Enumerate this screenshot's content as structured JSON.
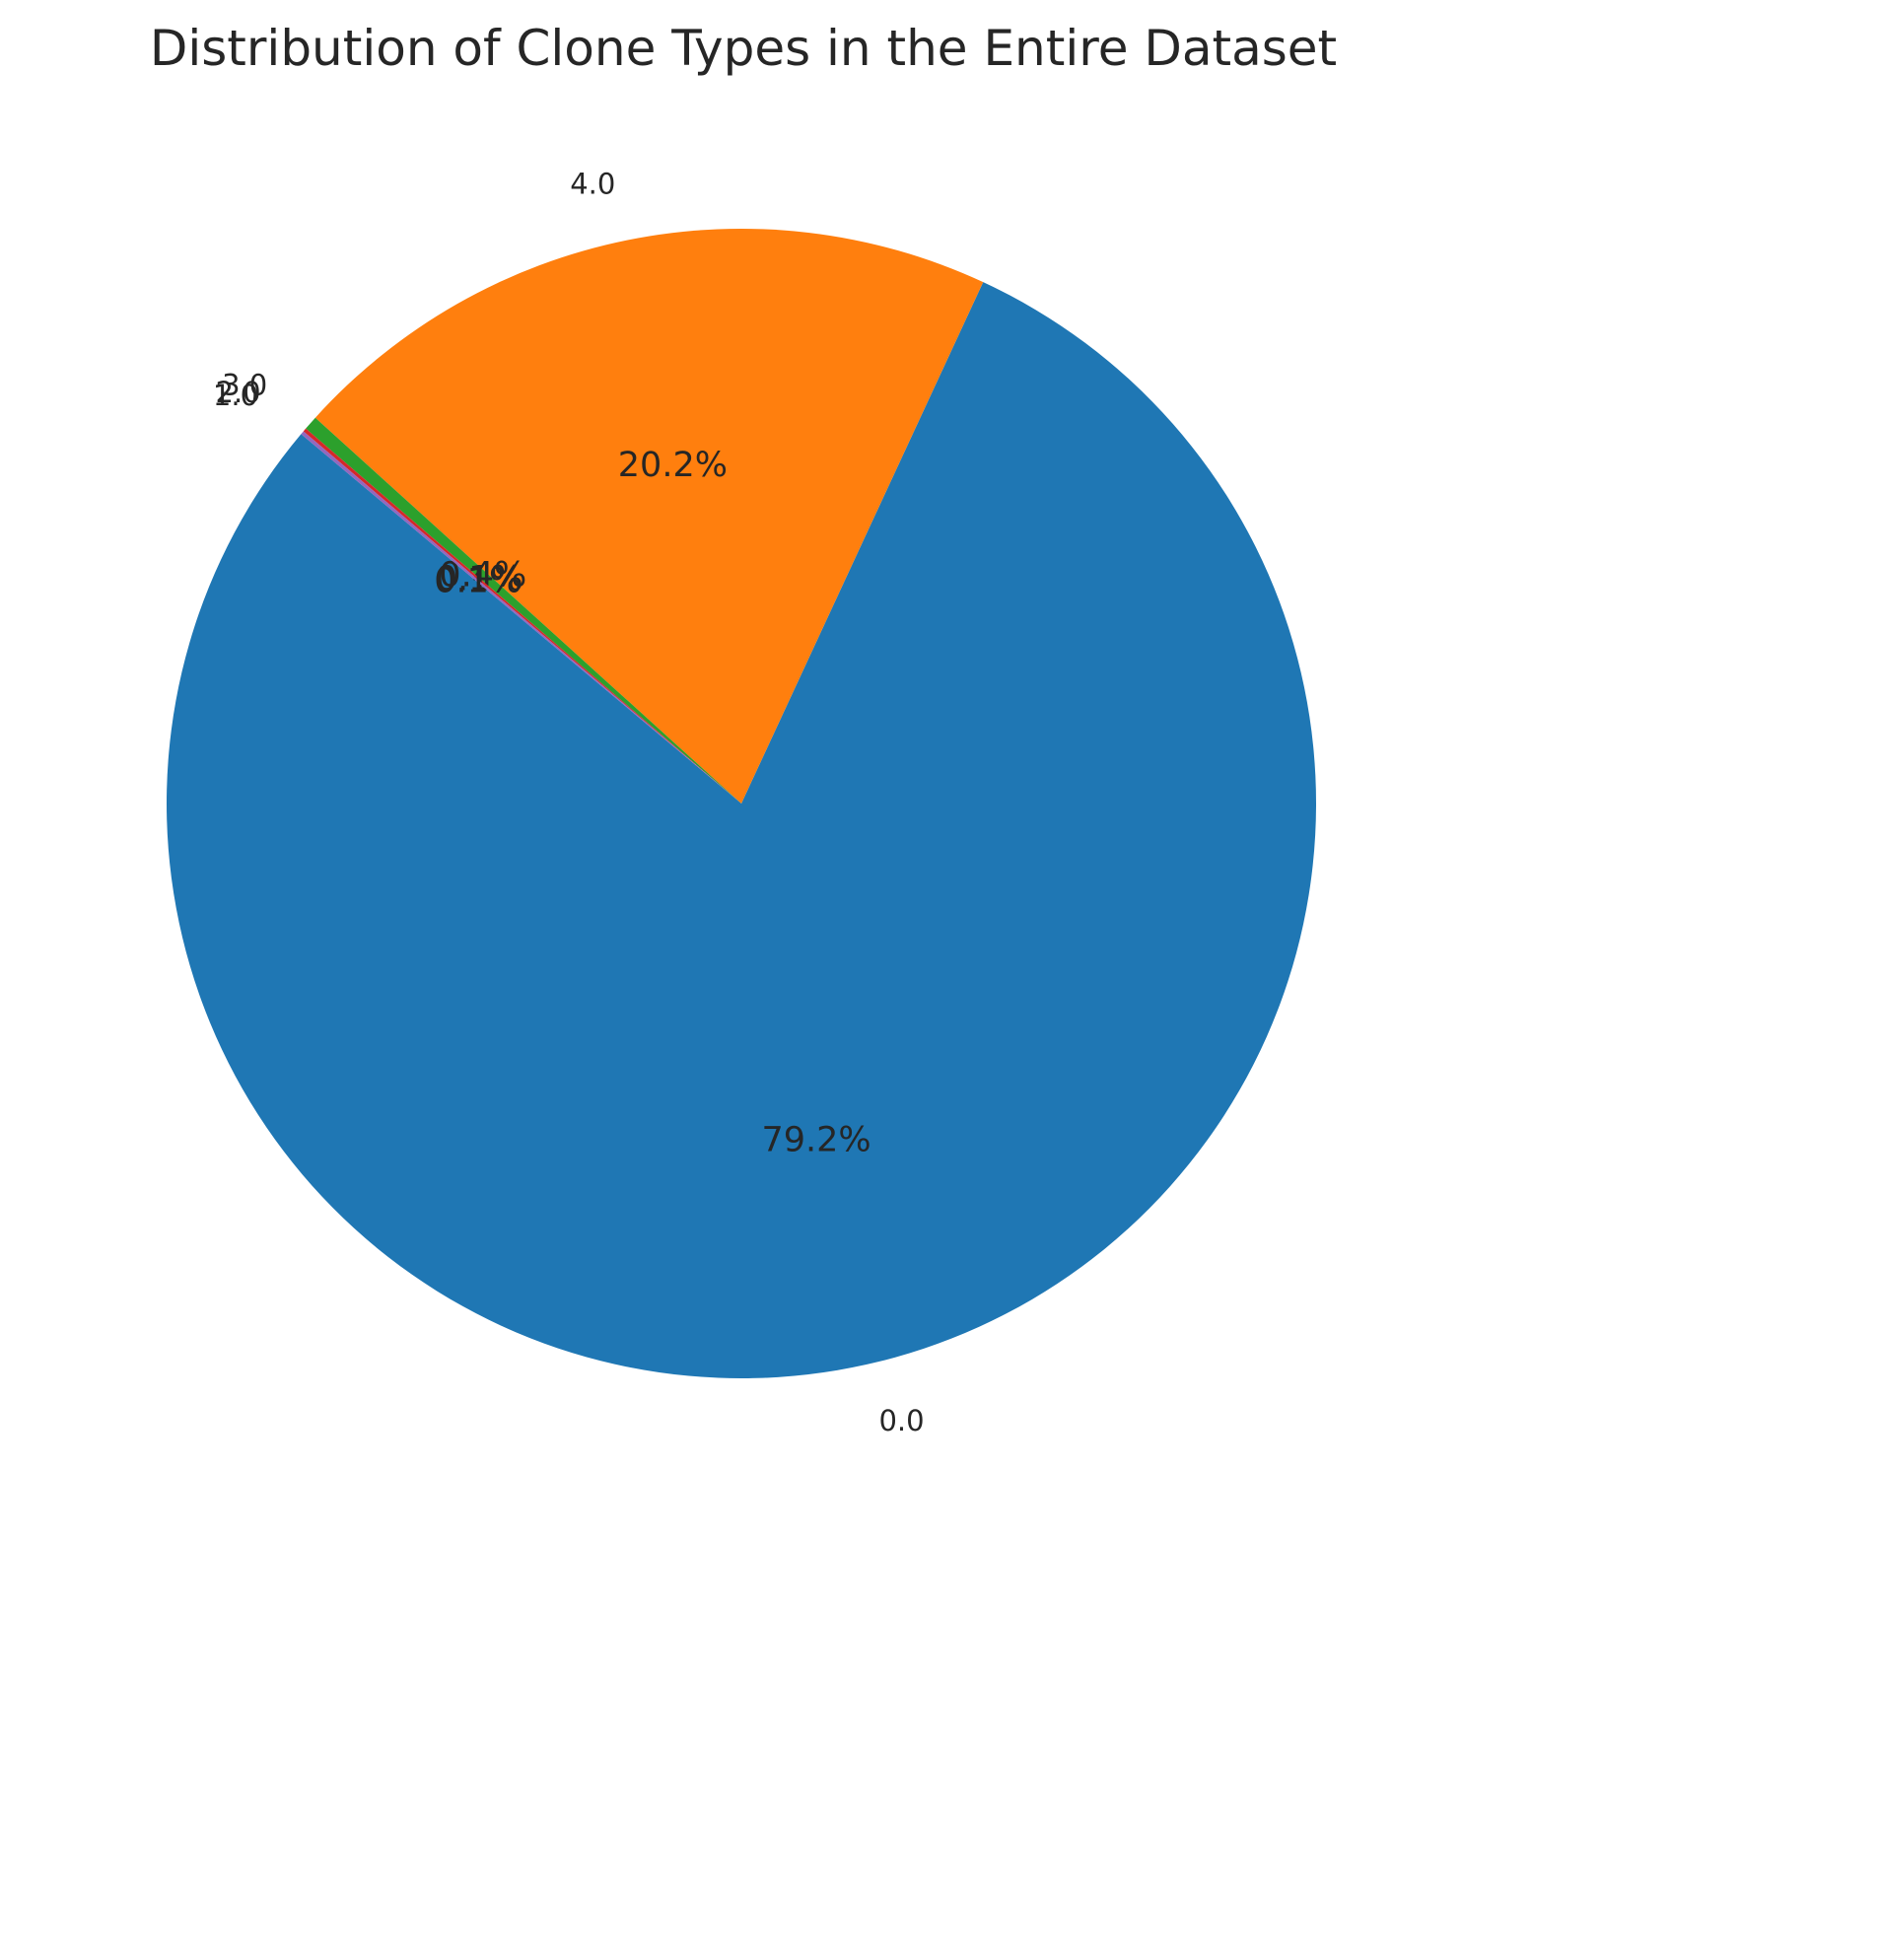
{
  "chart_data": {
    "type": "pie",
    "title": "Distribution of Clone Types in the Entire Dataset",
    "categories": [
      "0.0",
      "4.0",
      "3.0",
      "2.0",
      "1.0"
    ],
    "values": [
      79.2,
      20.2,
      0.4,
      0.1,
      0.1
    ],
    "percent_labels": [
      "79.2%",
      "20.2%",
      "0.4%",
      "0.1%",
      "0.1%"
    ],
    "colors": [
      "#1f77b4",
      "#ff7f0e",
      "#2ca02c",
      "#d62728",
      "#9467bd"
    ],
    "start_angle_deg": 140,
    "direction": "counterclockwise",
    "legend": "none"
  }
}
